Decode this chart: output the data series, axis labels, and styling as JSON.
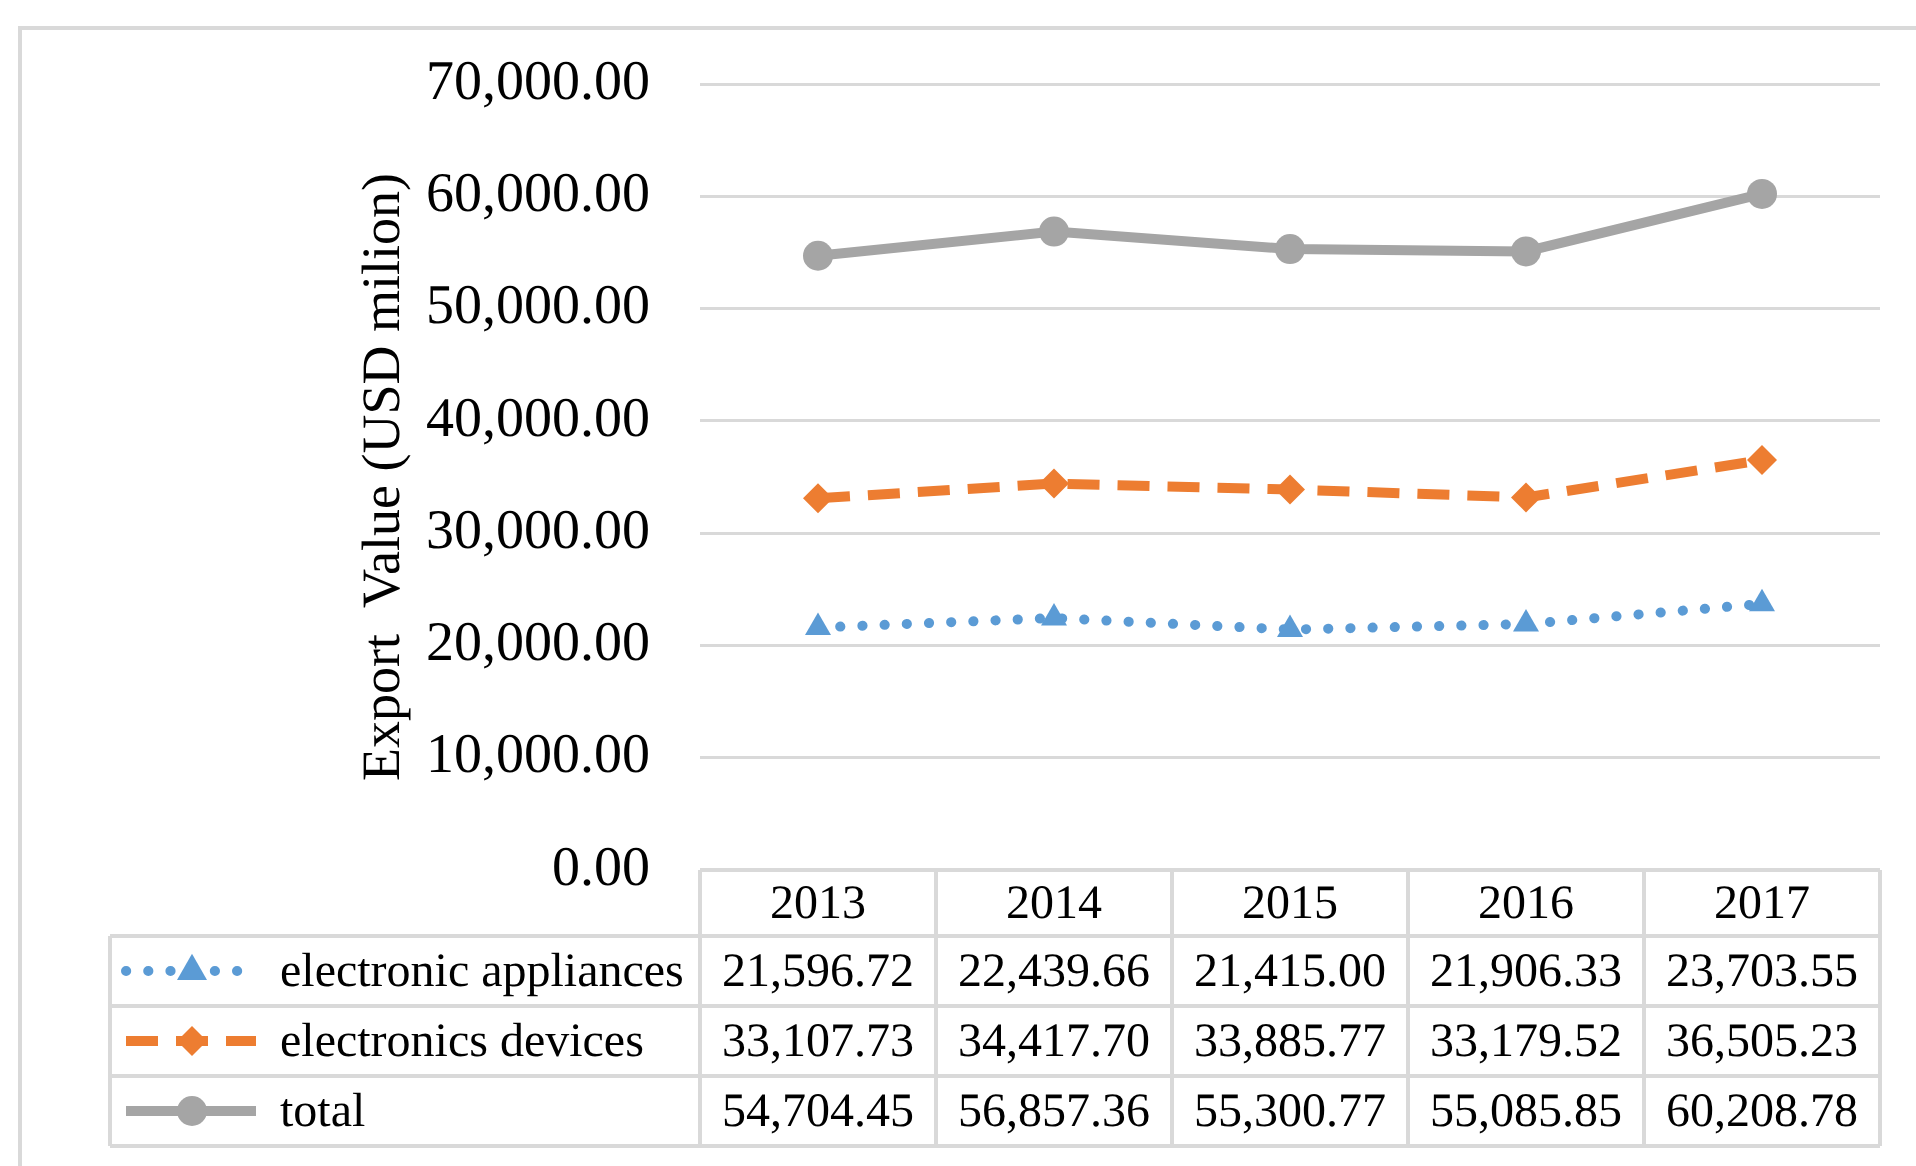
{
  "chart_data": {
    "type": "line",
    "categories": [
      "2013",
      "2014",
      "2015",
      "2016",
      "2017"
    ],
    "ylabel": "Export  Value (USD milion)",
    "ylim": [
      0,
      70000
    ],
    "yticks": [
      {
        "value": 0,
        "label": "0.00"
      },
      {
        "value": 10000,
        "label": "10,000.00"
      },
      {
        "value": 20000,
        "label": "20,000.00"
      },
      {
        "value": 30000,
        "label": "30,000.00"
      },
      {
        "value": 40000,
        "label": "40,000.00"
      },
      {
        "value": 50000,
        "label": "50,000.00"
      },
      {
        "value": 60000,
        "label": "60,000.00"
      },
      {
        "value": 70000,
        "label": "70,000.00"
      }
    ],
    "grid": "y",
    "legend": "bottom",
    "series": [
      {
        "name": "electronic appliances",
        "color": "#5b9bd5",
        "marker": "triangle",
        "line_style": "dotted",
        "values": [
          21596.72,
          22439.66,
          21415.0,
          21906.33,
          23703.55
        ],
        "value_labels": [
          "21,596.72",
          "22,439.66",
          "21,415.00",
          "21,906.33",
          "23,703.55"
        ]
      },
      {
        "name": "electronics devices",
        "color": "#ed7d31",
        "marker": "diamond",
        "line_style": "dashed",
        "values": [
          33107.73,
          34417.7,
          33885.77,
          33179.52,
          36505.23
        ],
        "value_labels": [
          "33,107.73",
          "34,417.70",
          "33,885.77",
          "33,179.52",
          "36,505.23"
        ]
      },
      {
        "name": "total",
        "color": "#a5a5a5",
        "marker": "circle",
        "line_style": "solid",
        "values": [
          54704.45,
          56857.36,
          55300.77,
          55085.85,
          60208.78
        ],
        "value_labels": [
          "54,704.45",
          "56,857.36",
          "55,300.77",
          "55,085.85",
          "60,208.78"
        ]
      }
    ]
  }
}
